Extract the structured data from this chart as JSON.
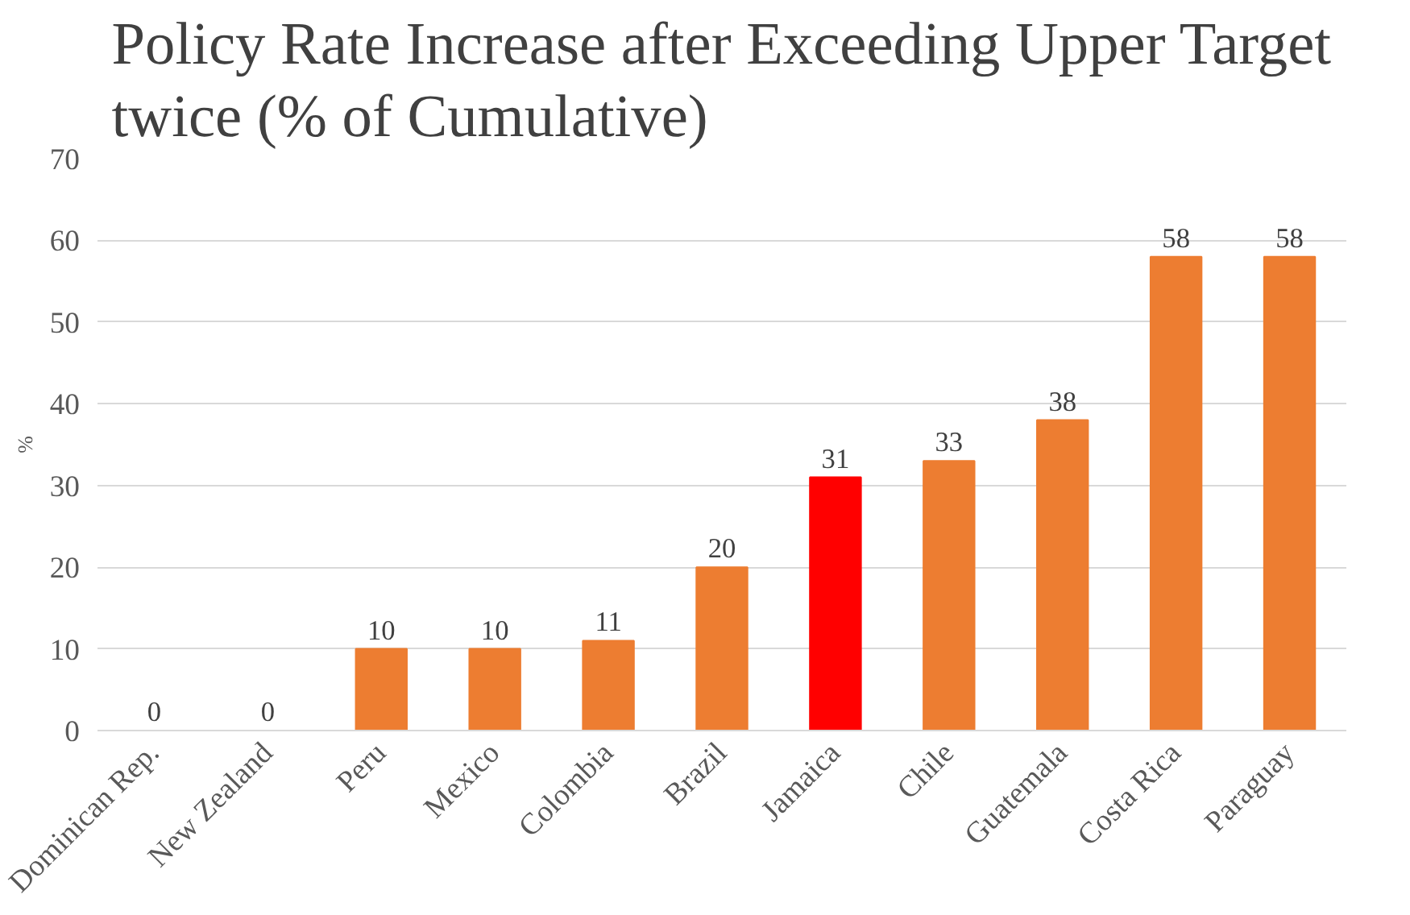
{
  "chart_data": {
    "type": "bar",
    "title": "Policy Rate Increase after Exceeding Upper Target twice (% of Cumulative)",
    "ylabel": "%",
    "categories": [
      "Dominican Rep.",
      "New Zealand",
      "Peru",
      "Mexico",
      "Colombia",
      "Brazil",
      "Jamaica",
      "Chile",
      "Guatemala",
      "Costa Rica",
      "Paraguay"
    ],
    "values": [
      0,
      0,
      10,
      10,
      11,
      20,
      31,
      33,
      38,
      58,
      58
    ],
    "colors": [
      "#ed7d31",
      "#ed7d31",
      "#ed7d31",
      "#ed7d31",
      "#ed7d31",
      "#ed7d31",
      "#ff0000",
      "#ed7d31",
      "#ed7d31",
      "#ed7d31",
      "#ed7d31"
    ],
    "ylim": [
      0,
      70
    ],
    "yticks": [
      0,
      10,
      20,
      30,
      40,
      50,
      60,
      70
    ],
    "grid": "y",
    "data_labels": true
  }
}
